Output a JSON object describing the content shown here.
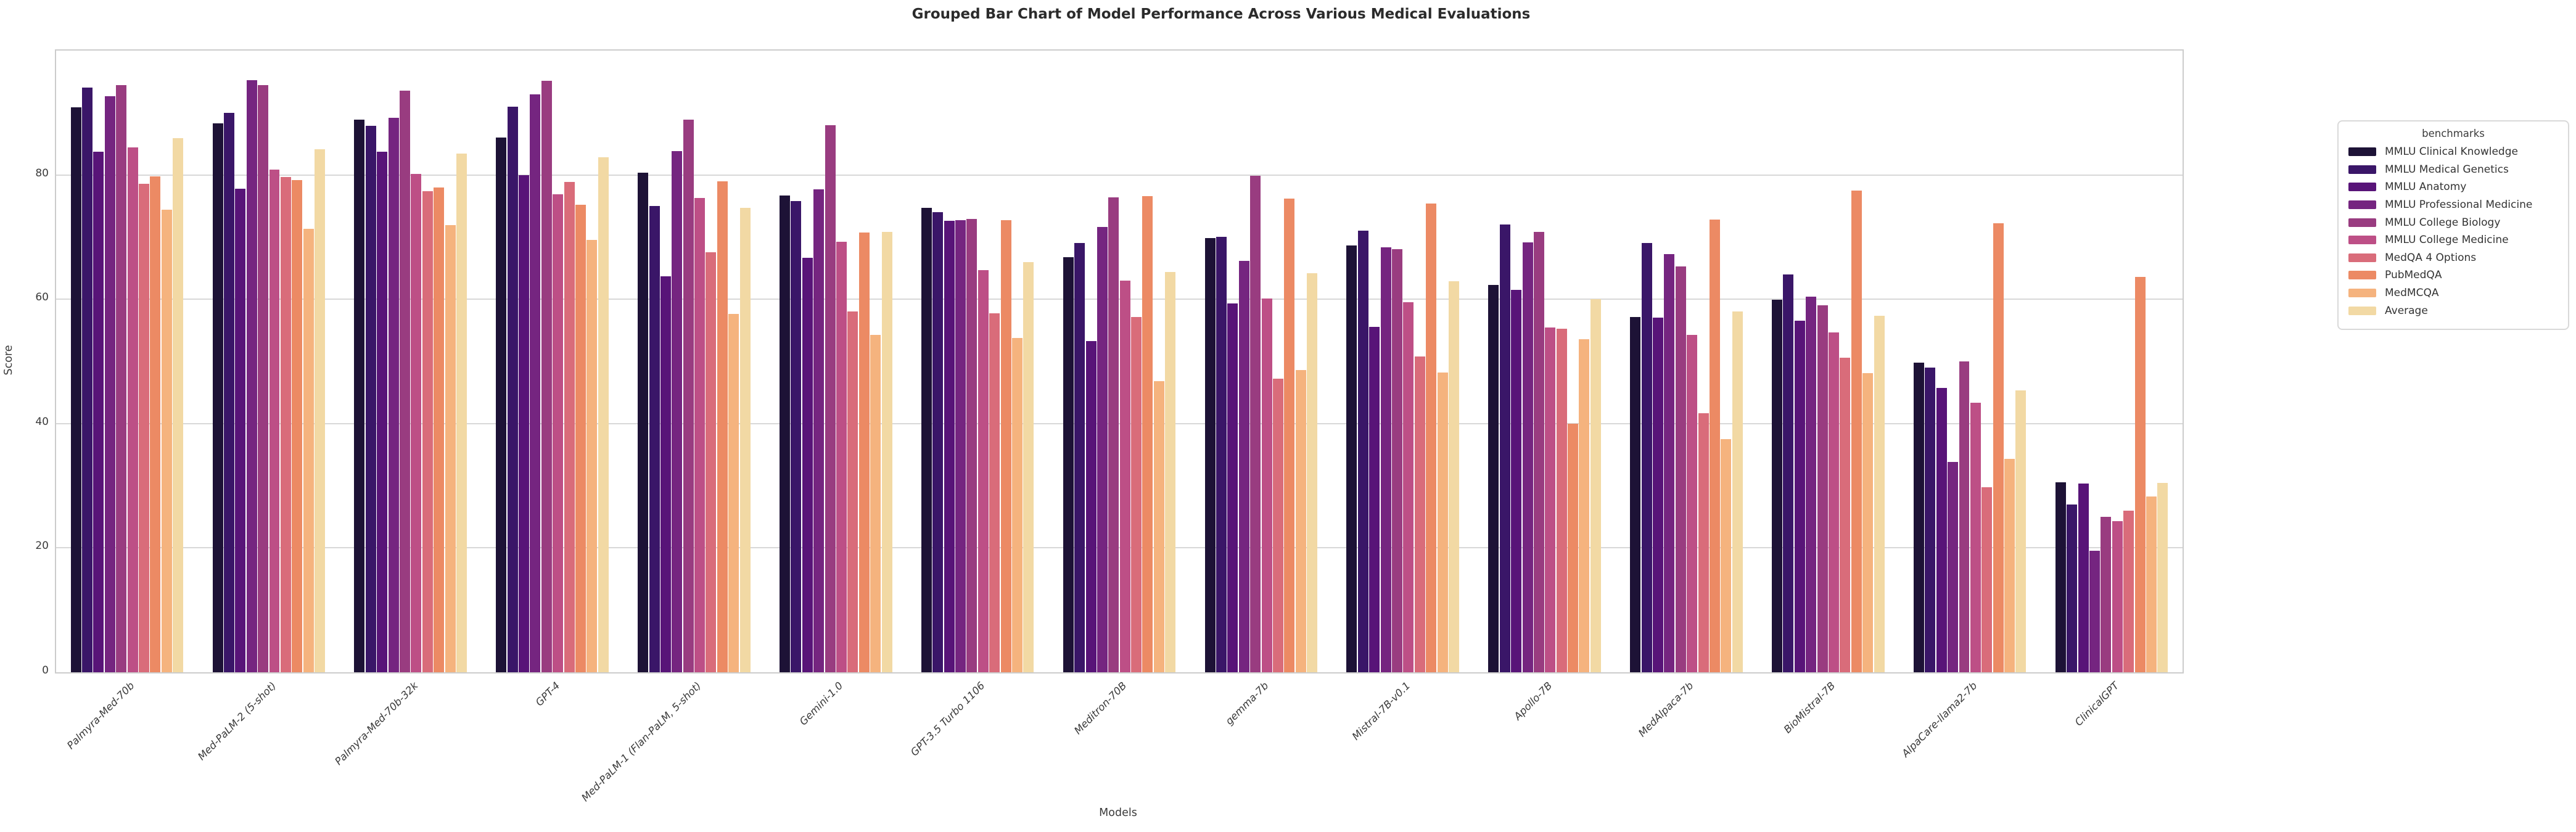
{
  "chart_data": {
    "type": "bar",
    "title": "Grouped Bar Chart of Model Performance Across Various Medical Evaluations",
    "xlabel": "Models",
    "ylabel": "Score",
    "ylim": [
      0,
      100
    ],
    "yticks": [
      0,
      20,
      40,
      60,
      80
    ],
    "grid": "horizontal",
    "legend_position": "right-outside",
    "legend_title": "benchmarks",
    "categories": [
      "Palmyra-Med-70b",
      "Med-PaLM-2 (5-shot)",
      "Palmyra-Med-70b-32k",
      "GPT-4",
      "Med-PaLM-1 (Flan-PaLM, 5-shot)",
      "Gemini-1.0",
      "GPT-3.5 Turbo 1106",
      "Meditron-70B",
      "gemma-7b",
      "Mistral-7B-v0.1",
      "Apollo-7B",
      "MedAlpaca-7b",
      "BioMistral-7B",
      "AlpaCare-llama2-7b",
      "ClinicalGPT"
    ],
    "series": [
      {
        "name": "MMLU Clinical Knowledge",
        "color": "#1d1236",
        "values": [
          90.9,
          88.3,
          88.9,
          86.0,
          80.4,
          76.7,
          74.7,
          66.8,
          69.8,
          68.7,
          62.3,
          57.1,
          59.9,
          49.8,
          30.6
        ]
      },
      {
        "name": "MMLU Medical Genetics",
        "color": "#3a1668",
        "values": [
          94.0,
          90.0,
          87.9,
          91.0,
          75.0,
          75.8,
          74.0,
          69.0,
          70.0,
          71.0,
          72.0,
          69.0,
          64.0,
          49.0,
          27.0
        ]
      },
      {
        "name": "MMLU Anatomy",
        "color": "#581478",
        "values": [
          83.7,
          77.8,
          83.7,
          80.0,
          63.7,
          66.7,
          72.6,
          53.3,
          59.3,
          55.6,
          61.5,
          57.0,
          56.5,
          45.7,
          30.4
        ]
      },
      {
        "name": "MMLU Professional Medicine",
        "color": "#752580",
        "values": [
          92.7,
          95.2,
          89.2,
          93.0,
          83.8,
          77.7,
          72.7,
          71.6,
          66.2,
          68.4,
          69.1,
          67.3,
          60.4,
          33.8,
          19.5
        ]
      },
      {
        "name": "MMLU College Biology",
        "color": "#993c80",
        "values": [
          94.4,
          94.4,
          93.6,
          95.1,
          88.9,
          88.0,
          72.9,
          76.4,
          79.9,
          68.1,
          70.8,
          65.3,
          59.0,
          50.0,
          25.0
        ]
      },
      {
        "name": "MMLU College Medicine",
        "color": "#bd4f86",
        "values": [
          84.4,
          80.9,
          80.2,
          76.9,
          76.3,
          69.2,
          64.7,
          63.0,
          60.1,
          59.5,
          55.5,
          54.3,
          54.7,
          43.4,
          24.3
        ]
      },
      {
        "name": "MedQA 4 Options",
        "color": "#d96c7a",
        "values": [
          78.6,
          79.7,
          77.4,
          78.9,
          67.6,
          58.0,
          57.7,
          57.1,
          47.2,
          50.8,
          55.3,
          41.7,
          50.6,
          29.8,
          26.0
        ]
      },
      {
        "name": "PubMedQA",
        "color": "#ec8a64",
        "values": [
          79.8,
          79.2,
          78.0,
          75.2,
          79.0,
          70.7,
          72.7,
          76.6,
          76.2,
          75.4,
          40.0,
          72.8,
          77.5,
          72.2,
          63.6
        ]
      },
      {
        "name": "MedMCQA",
        "color": "#f5b37e",
        "values": [
          74.4,
          71.3,
          71.9,
          69.5,
          57.6,
          54.3,
          53.8,
          46.8,
          48.6,
          48.2,
          53.6,
          37.5,
          48.1,
          34.3,
          28.3
        ]
      },
      {
        "name": "Average",
        "color": "#f2d9a4",
        "values": [
          85.9,
          84.1,
          83.4,
          82.8,
          74.7,
          70.8,
          66.0,
          64.4,
          64.2,
          62.9,
          60.0,
          58.0,
          57.3,
          45.3,
          30.5
        ]
      }
    ]
  }
}
